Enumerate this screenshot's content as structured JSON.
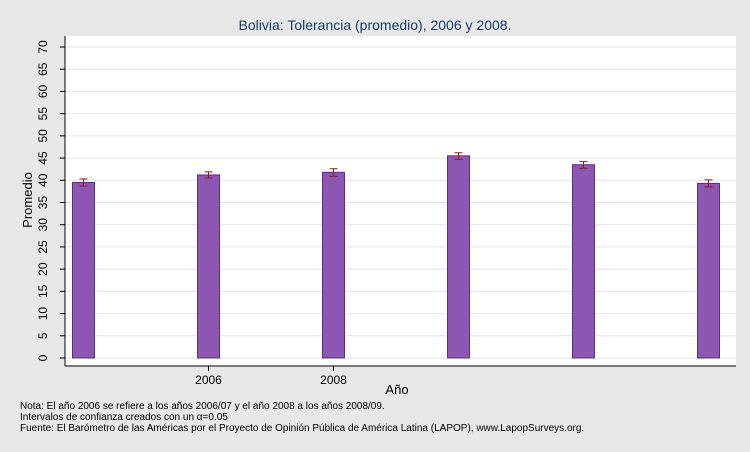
{
  "chart_data": {
    "type": "bar",
    "title": "Bolivia: Tolerancia (promedio), 2006 y 2008.",
    "xlabel": "Año",
    "ylabel": "Promedio",
    "ylim": [
      0,
      70
    ],
    "yticks": [
      0,
      5,
      10,
      15,
      20,
      25,
      30,
      35,
      40,
      45,
      50,
      55,
      60,
      65,
      70
    ],
    "x_tick_labels": [
      "",
      "2006",
      "2008",
      "",
      "",
      ""
    ],
    "values": [
      39.5,
      41.2,
      41.8,
      45.5,
      43.5,
      39.3
    ],
    "error_low": [
      38.7,
      40.5,
      40.9,
      44.7,
      42.7,
      38.5
    ],
    "error_high": [
      40.3,
      41.9,
      42.6,
      46.2,
      44.2,
      40.1
    ],
    "grid": true,
    "bar_color": "#8e56b3",
    "bar_edge_color": "#5a2e7a",
    "error_bar_color": "#8b1a1a"
  },
  "notes": [
    "Nota: El año 2006 se refiere a los años 2006/07 y el año 2008 a los años 2008/09.",
    "Intervalos de confianza creados con un α=0.05",
    "Fuente: El Barómetro de las Américas por el Proyecto de Opinión Pública de América Latina (LAPOP), www.LapopSurveys.org."
  ]
}
